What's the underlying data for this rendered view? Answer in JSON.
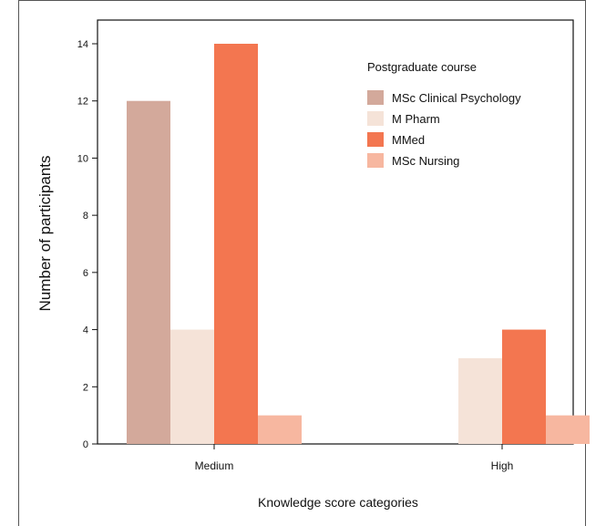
{
  "chart_data": {
    "type": "bar",
    "categories": [
      "Medium",
      "High"
    ],
    "series": [
      {
        "name": "MSc Clinical Psychology",
        "values": [
          12,
          0
        ],
        "color": "#d3a99b"
      },
      {
        "name": "M Pharm",
        "values": [
          4,
          3
        ],
        "color": "#f5e3d8"
      },
      {
        "name": "MMed",
        "values": [
          14,
          4
        ],
        "color": "#f37650"
      },
      {
        "name": "MSc Nursing",
        "values": [
          1,
          1
        ],
        "color": "#f7b7a0"
      }
    ],
    "xlabel": "Knowledge score categories",
    "ylabel": "Number of participants",
    "ylim": [
      0,
      14
    ],
    "yticks": [
      0,
      2,
      4,
      6,
      8,
      10,
      12,
      14
    ],
    "legend_title": "Postgraduate course",
    "legend_position": "top-right",
    "grid": false
  }
}
